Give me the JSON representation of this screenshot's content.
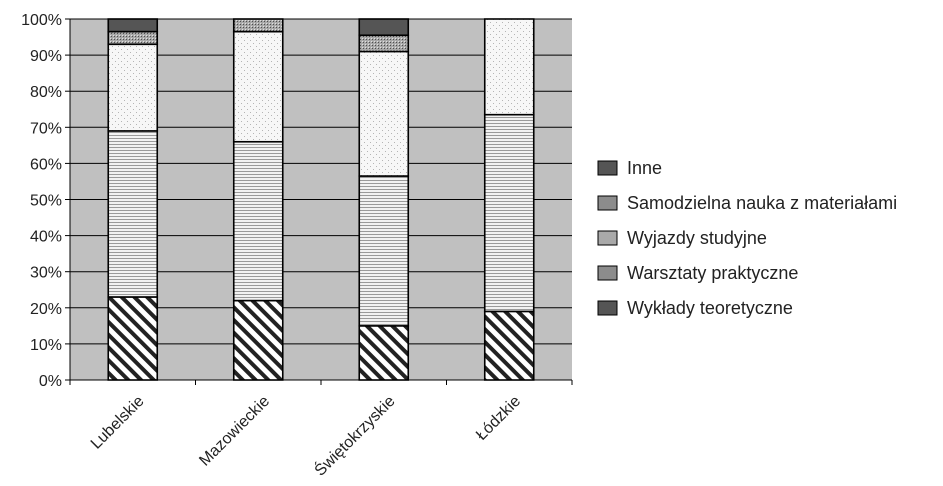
{
  "chart_data": {
    "type": "bar",
    "stacked": true,
    "percent_stacked": true,
    "categories": [
      "Lubelskie",
      "Mazowieckie",
      "Świętokrzyskie",
      "Łódzkie"
    ],
    "series": [
      {
        "name": "Wykłady teoretyczne",
        "values": [
          23,
          22,
          15,
          19
        ],
        "pattern": "diagonal-hatch"
      },
      {
        "name": "Warsztaty praktyczne",
        "values": [
          46,
          44,
          41.5,
          54.5
        ],
        "pattern": "horizontal-lines"
      },
      {
        "name": "Wyjazdy studyjne",
        "values": [
          24,
          30.5,
          34.5,
          26.5
        ],
        "pattern": "light-dots"
      },
      {
        "name": "Samodzielna nauka z materiałami",
        "values": [
          3.5,
          3.5,
          4.5,
          0
        ],
        "pattern": "dense-dots"
      },
      {
        "name": "Inne",
        "values": [
          3.5,
          0,
          4.5,
          0
        ],
        "pattern": "solid-dark"
      }
    ],
    "ylim": [
      0,
      100
    ],
    "yticks": [
      "0%",
      "10%",
      "20%",
      "30%",
      "40%",
      "50%",
      "60%",
      "70%",
      "80%",
      "90%",
      "100%"
    ],
    "grid": true,
    "legend_position": "right",
    "legend_order": [
      "Inne",
      "Samodzielna nauka z materiałami",
      "Wyjazdy studyjne",
      "Warsztaty praktyczne",
      "Wykłady teoretyczne"
    ],
    "colors": {
      "plot_background": "#c0c0c0",
      "gridline": "#000000",
      "bar_outline": "#000000",
      "inne": "#555555",
      "samodzielna": "#8a8a8a",
      "wyjazdy": "#f5f5f5",
      "warsztaty": "#eeeeee",
      "wyklady": "#ffffff",
      "legend_inne": "#555555",
      "legend_samodzielna": "#8c8c8c",
      "legend_wyjazdy": "#a9a9a9",
      "legend_warsztaty": "#8c8c8c",
      "legend_wyklady": "#555555"
    }
  }
}
